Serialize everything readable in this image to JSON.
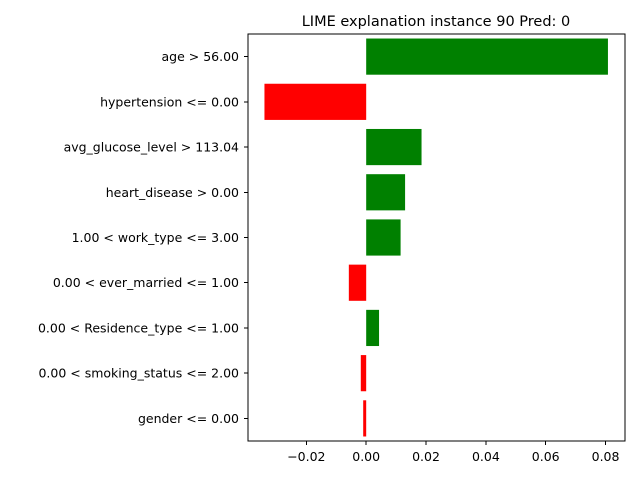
{
  "chart_data": {
    "type": "bar",
    "orientation": "horizontal",
    "title": "LIME explanation instance 90 Pred: 0",
    "xlabel": "",
    "ylabel": "",
    "categories": [
      "age > 56.00",
      "hypertension <= 0.00",
      "avg_glucose_level > 113.04",
      "heart_disease > 0.00",
      "1.00 < work_type <= 3.00",
      "0.00 < ever_married <= 1.00",
      "0.00 < Residence_type <= 1.00",
      "0.00 < smoking_status <= 2.00",
      "gender <= 0.00"
    ],
    "values": [
      0.0808,
      -0.034,
      0.0185,
      0.013,
      0.0115,
      -0.0058,
      0.0043,
      -0.0018,
      -0.001
    ],
    "xlim": [
      -0.0395,
      0.0865
    ],
    "xticks": [
      -0.02,
      0.0,
      0.02,
      0.04,
      0.06,
      0.08
    ],
    "xtick_labels": [
      "−0.02",
      "0.00",
      "0.02",
      "0.04",
      "0.06",
      "0.08"
    ],
    "colors": {
      "positive": "#008000",
      "negative": "#ff0000"
    },
    "grid": false,
    "legend": "none"
  }
}
